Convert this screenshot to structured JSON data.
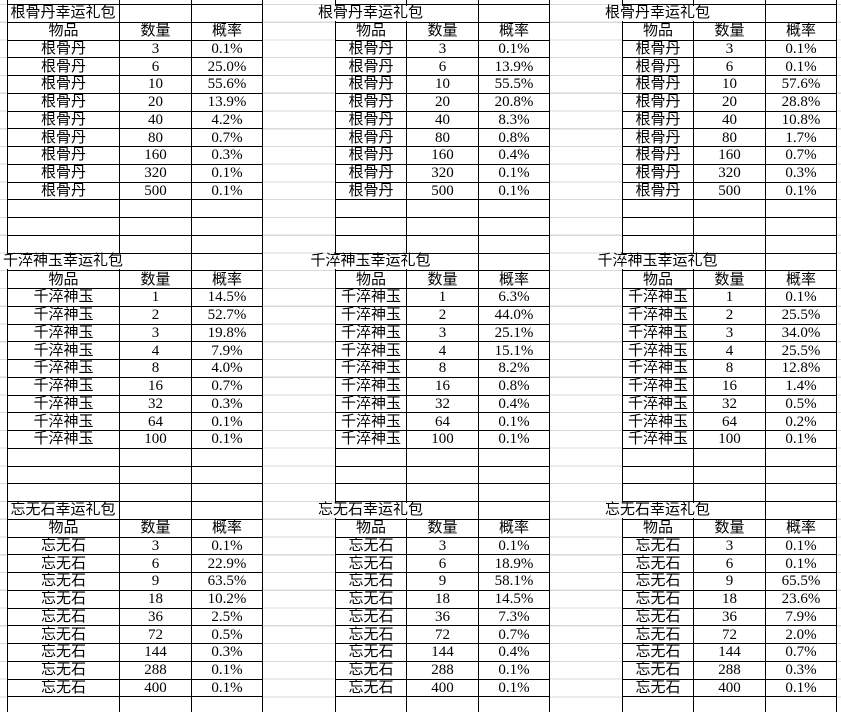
{
  "sheet": {
    "background": "#ffffff",
    "gridline_color": "#d9d9d9",
    "table_border_color": "#000000",
    "text_color": "#000000",
    "headers": [
      "物品",
      "数量",
      "概率"
    ]
  },
  "tables": [
    {
      "title": "根骨丹幸运礼包",
      "item": "根骨丹",
      "rows": [
        [
          "3",
          "0.1%"
        ],
        [
          "6",
          "25.0%"
        ],
        [
          "10",
          "55.6%"
        ],
        [
          "20",
          "13.9%"
        ],
        [
          "40",
          "4.2%"
        ],
        [
          "80",
          "0.7%"
        ],
        [
          "160",
          "0.3%"
        ],
        [
          "320",
          "0.1%"
        ],
        [
          "500",
          "0.1%"
        ]
      ]
    },
    {
      "title": "根骨丹幸运礼包",
      "item": "根骨丹",
      "rows": [
        [
          "3",
          "0.1%"
        ],
        [
          "6",
          "13.9%"
        ],
        [
          "10",
          "55.5%"
        ],
        [
          "20",
          "20.8%"
        ],
        [
          "40",
          "8.3%"
        ],
        [
          "80",
          "0.8%"
        ],
        [
          "160",
          "0.4%"
        ],
        [
          "320",
          "0.1%"
        ],
        [
          "500",
          "0.1%"
        ]
      ]
    },
    {
      "title": "根骨丹幸运礼包",
      "item": "根骨丹",
      "rows": [
        [
          "3",
          "0.1%"
        ],
        [
          "6",
          "0.1%"
        ],
        [
          "10",
          "57.6%"
        ],
        [
          "20",
          "28.8%"
        ],
        [
          "40",
          "10.8%"
        ],
        [
          "80",
          "1.7%"
        ],
        [
          "160",
          "0.7%"
        ],
        [
          "320",
          "0.3%"
        ],
        [
          "500",
          "0.1%"
        ]
      ]
    },
    {
      "title": "千淬神玉幸运礼包",
      "item": "千淬神玉",
      "rows": [
        [
          "1",
          "14.5%"
        ],
        [
          "2",
          "52.7%"
        ],
        [
          "3",
          "19.8%"
        ],
        [
          "4",
          "7.9%"
        ],
        [
          "8",
          "4.0%"
        ],
        [
          "16",
          "0.7%"
        ],
        [
          "32",
          "0.3%"
        ],
        [
          "64",
          "0.1%"
        ],
        [
          "100",
          "0.1%"
        ]
      ]
    },
    {
      "title": "千淬神玉幸运礼包",
      "item": "千淬神玉",
      "rows": [
        [
          "1",
          "6.3%"
        ],
        [
          "2",
          "44.0%"
        ],
        [
          "3",
          "25.1%"
        ],
        [
          "4",
          "15.1%"
        ],
        [
          "8",
          "8.2%"
        ],
        [
          "16",
          "0.8%"
        ],
        [
          "32",
          "0.4%"
        ],
        [
          "64",
          "0.1%"
        ],
        [
          "100",
          "0.1%"
        ]
      ]
    },
    {
      "title": "千淬神玉幸运礼包",
      "item": "千淬神玉",
      "rows": [
        [
          "1",
          "0.1%"
        ],
        [
          "2",
          "25.5%"
        ],
        [
          "3",
          "34.0%"
        ],
        [
          "4",
          "25.5%"
        ],
        [
          "8",
          "12.8%"
        ],
        [
          "16",
          "1.4%"
        ],
        [
          "32",
          "0.5%"
        ],
        [
          "64",
          "0.2%"
        ],
        [
          "100",
          "0.1%"
        ]
      ]
    },
    {
      "title": "忘无石幸运礼包",
      "item": "忘无石",
      "rows": [
        [
          "3",
          "0.1%"
        ],
        [
          "6",
          "22.9%"
        ],
        [
          "9",
          "63.5%"
        ],
        [
          "18",
          "10.2%"
        ],
        [
          "36",
          "2.5%"
        ],
        [
          "72",
          "0.5%"
        ],
        [
          "144",
          "0.3%"
        ],
        [
          "288",
          "0.1%"
        ],
        [
          "400",
          "0.1%"
        ]
      ]
    },
    {
      "title": "忘无石幸运礼包",
      "item": "忘无石",
      "rows": [
        [
          "3",
          "0.1%"
        ],
        [
          "6",
          "18.9%"
        ],
        [
          "9",
          "58.1%"
        ],
        [
          "18",
          "14.5%"
        ],
        [
          "36",
          "7.3%"
        ],
        [
          "72",
          "0.7%"
        ],
        [
          "144",
          "0.4%"
        ],
        [
          "288",
          "0.1%"
        ],
        [
          "400",
          "0.1%"
        ]
      ]
    },
    {
      "title": "忘无石幸运礼包",
      "item": "忘无石",
      "rows": [
        [
          "3",
          "0.1%"
        ],
        [
          "6",
          "0.1%"
        ],
        [
          "9",
          "65.5%"
        ],
        [
          "18",
          "23.6%"
        ],
        [
          "36",
          "7.9%"
        ],
        [
          "72",
          "2.0%"
        ],
        [
          "144",
          "0.7%"
        ],
        [
          "288",
          "0.3%"
        ],
        [
          "400",
          "0.1%"
        ]
      ]
    }
  ]
}
